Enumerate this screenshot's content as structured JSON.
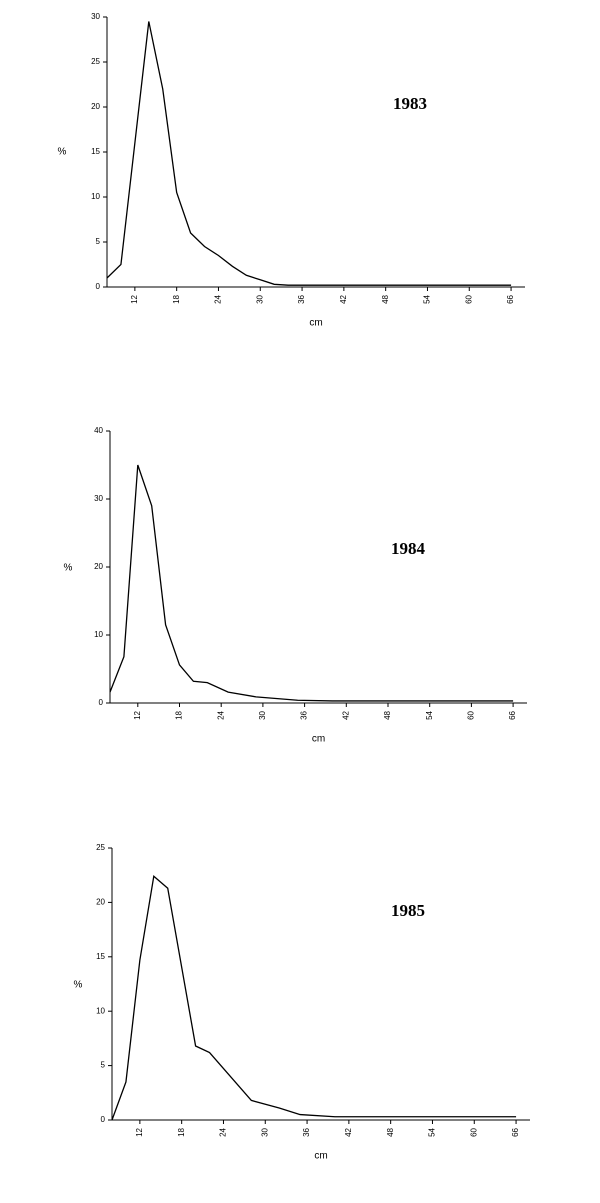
{
  "chart_data": [
    {
      "type": "line",
      "annotation": "1983",
      "xlabel": "cm",
      "ylabel": "%",
      "x": [
        8,
        10,
        14,
        16,
        18,
        20,
        22,
        24,
        26,
        28,
        30,
        32,
        34,
        40,
        50,
        60,
        66
      ],
      "series": [
        {
          "color": "#000000",
          "values": [
            1,
            2.5,
            29.5,
            22,
            10.5,
            6,
            4.5,
            3.5,
            2.3,
            1.3,
            0.8,
            0.3,
            0.2,
            0.2,
            0.2,
            0.2,
            0.2
          ]
        }
      ],
      "xlim": [
        8,
        68
      ],
      "xticks": [
        12,
        18,
        24,
        30,
        36,
        42,
        48,
        54,
        60,
        66
      ],
      "ylim": [
        0,
        30
      ],
      "yticks": [
        0,
        5,
        10,
        15,
        20,
        25,
        30
      ]
    },
    {
      "type": "line",
      "annotation": "1984",
      "xlabel": "cm",
      "ylabel": "%",
      "x": [
        8,
        10,
        12,
        14,
        16,
        18,
        20,
        22,
        25,
        29,
        35,
        40,
        50,
        60,
        66
      ],
      "series": [
        {
          "color": "#000000",
          "values": [
            1.6,
            6.8,
            35,
            29,
            11.5,
            5.6,
            3.2,
            3,
            1.6,
            0.9,
            0.4,
            0.3,
            0.3,
            0.3,
            0.3
          ]
        }
      ],
      "xlim": [
        8,
        68
      ],
      "xticks": [
        12,
        18,
        24,
        30,
        36,
        42,
        48,
        54,
        60,
        66
      ],
      "ylim": [
        0,
        40
      ],
      "yticks": [
        0,
        10,
        20,
        30,
        40
      ]
    },
    {
      "type": "line",
      "annotation": "1985",
      "xlabel": "cm",
      "ylabel": "%",
      "x": [
        8,
        10,
        12,
        14,
        16,
        20,
        22,
        28,
        32,
        35,
        40,
        50,
        60,
        66
      ],
      "series": [
        {
          "color": "#000000",
          "values": [
            0,
            3.5,
            14.7,
            22.4,
            21.3,
            6.8,
            6.2,
            1.8,
            1.1,
            0.5,
            0.3,
            0.3,
            0.3,
            0.3
          ]
        }
      ],
      "xlim": [
        8,
        68
      ],
      "xticks": [
        12,
        18,
        24,
        30,
        36,
        42,
        48,
        54,
        60,
        66
      ],
      "ylim": [
        0,
        25
      ],
      "yticks": [
        0,
        5,
        10,
        15,
        20,
        25
      ]
    }
  ]
}
